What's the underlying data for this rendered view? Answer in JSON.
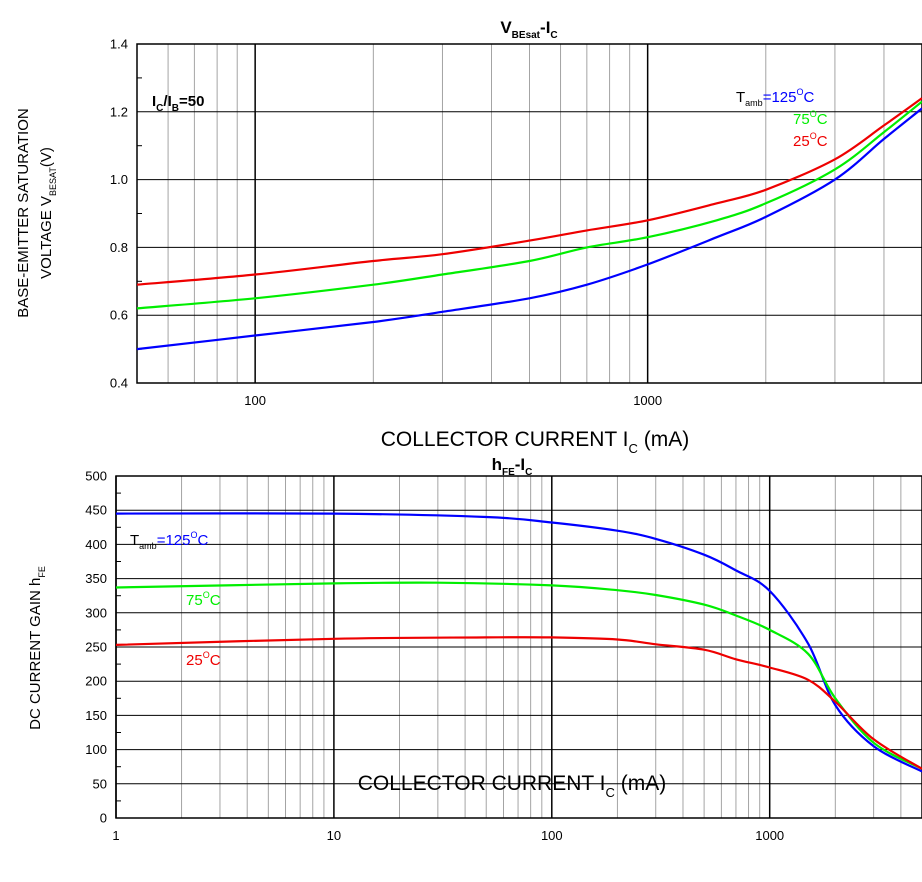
{
  "chart_data": [
    {
      "type": "line",
      "title": "V",
      "title_sub": "BEsat",
      "title_tail": "-I",
      "title_tail_sub": "C",
      "x_scale": "log",
      "xlim": [
        50,
        5000
      ],
      "ylim": [
        0.4,
        1.4
      ],
      "x_ticks": [
        100,
        1000
      ],
      "x_tick_labels": [
        "100",
        "1000"
      ],
      "y_ticks": [
        0.4,
        0.6,
        0.8,
        1.0,
        1.2,
        1.4
      ],
      "y_tick_labels": [
        "0.4",
        "0.6",
        "0.8",
        "1.0",
        "1.2",
        "1.4"
      ],
      "xlabel": "COLLECTOR CURRENT I",
      "xlabel_sub": "C",
      "xlabel_tail": " (mA)",
      "ylabel_line1": "BASE-EMITTER SATURATION",
      "ylabel_line2": "VOLTAGE V",
      "ylabel_sub": "BESAT",
      "ylabel_tail": "(V)",
      "grid": true,
      "annotation": {
        "a": "I",
        "a_sub": "C",
        "b": "/I",
        "b_sub": "B",
        "c": "=50"
      },
      "legend_placement": "top-right",
      "legend_prefix": "T",
      "legend_prefix_sub": "amb",
      "series": [
        {
          "name": "=125",
          "unit": "C",
          "deg": "O",
          "color": "#0000ff",
          "x": [
            50,
            100,
            200,
            300,
            500,
            700,
            1000,
            1500,
            2000,
            3000,
            4000,
            5000
          ],
          "y": [
            0.5,
            0.54,
            0.58,
            0.61,
            0.65,
            0.69,
            0.75,
            0.83,
            0.89,
            1.0,
            1.12,
            1.21
          ]
        },
        {
          "name": "75",
          "unit": "C",
          "deg": "O",
          "color": "#00ee00",
          "x": [
            50,
            100,
            200,
            300,
            500,
            700,
            1000,
            1500,
            2000,
            3000,
            4000,
            5000
          ],
          "y": [
            0.62,
            0.65,
            0.69,
            0.72,
            0.76,
            0.8,
            0.83,
            0.88,
            0.93,
            1.03,
            1.14,
            1.23
          ]
        },
        {
          "name": "25",
          "unit": "C",
          "deg": "O",
          "color": "#ee0000",
          "x": [
            50,
            100,
            200,
            300,
            500,
            700,
            1000,
            1500,
            2000,
            3000,
            4000,
            5000
          ],
          "y": [
            0.69,
            0.72,
            0.76,
            0.78,
            0.82,
            0.85,
            0.88,
            0.93,
            0.97,
            1.06,
            1.16,
            1.24
          ]
        }
      ]
    },
    {
      "type": "line",
      "title": "h",
      "title_sub": "FE",
      "title_tail": "-I",
      "title_tail_sub": "C",
      "x_scale": "log",
      "xlim": [
        1,
        5000
      ],
      "ylim": [
        0,
        500
      ],
      "x_ticks": [
        1,
        10,
        100,
        1000
      ],
      "x_tick_labels": [
        "1",
        "10",
        "100",
        "1000"
      ],
      "y_ticks": [
        0,
        50,
        100,
        150,
        200,
        250,
        300,
        350,
        400,
        450,
        500
      ],
      "y_tick_labels": [
        "0",
        "50",
        "100",
        "150",
        "200",
        "250",
        "300",
        "350",
        "400",
        "450",
        "500"
      ],
      "xlabel": "COLLECTOR CURRENT I",
      "xlabel_sub": "C",
      "xlabel_tail": " (mA)",
      "ylabel_line1": "DC CURRENT GAIN h",
      "ylabel_sub": "FE",
      "grid": true,
      "legend_prefix": "T",
      "legend_prefix_sub": "amb",
      "series": [
        {
          "name": "=125",
          "unit": "C",
          "deg": "O",
          "color": "#0000ff",
          "x": [
            1,
            10,
            50,
            100,
            200,
            300,
            500,
            700,
            1000,
            1500,
            2000,
            3000,
            5000
          ],
          "y": [
            445,
            445,
            440,
            432,
            420,
            408,
            385,
            362,
            332,
            255,
            165,
            105,
            68
          ]
        },
        {
          "name": "75",
          "unit": "C",
          "deg": "O",
          "color": "#00ee00",
          "x": [
            1,
            10,
            30,
            100,
            200,
            300,
            500,
            700,
            1000,
            1500,
            2000,
            3000,
            5000
          ],
          "y": [
            337,
            343,
            344,
            340,
            333,
            326,
            312,
            296,
            275,
            240,
            175,
            110,
            72
          ]
        },
        {
          "name": "25",
          "unit": "C",
          "deg": "O",
          "color": "#ee0000",
          "x": [
            1,
            10,
            50,
            100,
            200,
            300,
            500,
            700,
            1000,
            1500,
            2000,
            3000,
            5000
          ],
          "y": [
            253,
            262,
            264,
            264,
            261,
            254,
            246,
            232,
            220,
            202,
            170,
            115,
            72
          ]
        }
      ]
    }
  ]
}
